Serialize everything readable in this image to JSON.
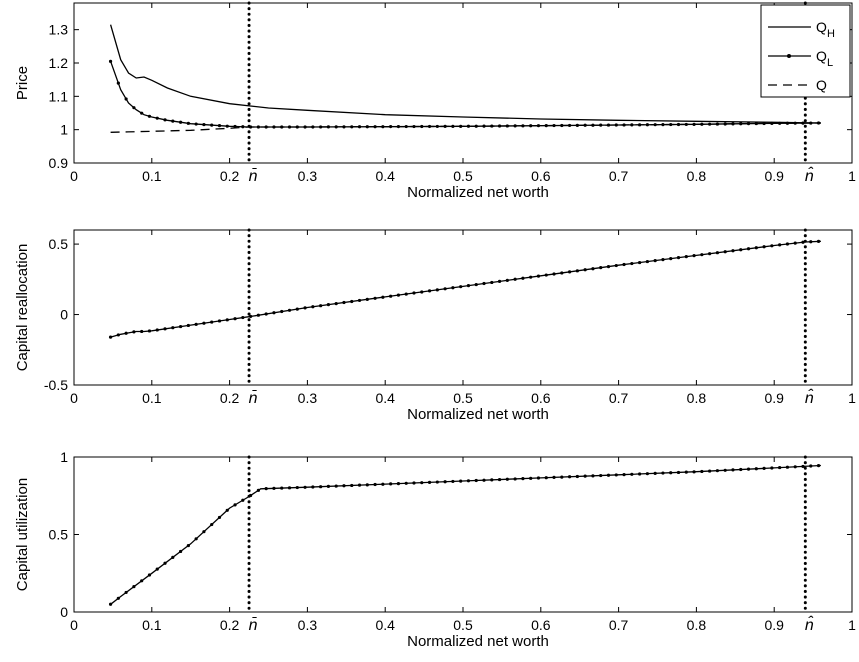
{
  "chart_data": [
    {
      "type": "line",
      "xlabel": "Normalized net worth",
      "ylabel": "Price",
      "xlim": [
        0,
        1
      ],
      "ylim": [
        0.9,
        1.38
      ],
      "x_ticks": [
        "0",
        "0.1",
        "0.2",
        "0.3",
        "0.4",
        "0.5",
        "0.6",
        "0.7",
        "0.8",
        "0.9",
        "1"
      ],
      "y_ticks": [
        "0.9",
        "1",
        "1.1",
        "1.2",
        "1.3"
      ],
      "vlines": [
        {
          "x": 0.225,
          "label": "n̄"
        },
        {
          "x": 0.94,
          "label": "n̂"
        }
      ],
      "legend": {
        "position": "top-right"
      },
      "series": [
        {
          "name": "Q",
          "name_sub": "H",
          "style": "solid",
          "x": [
            0.047,
            0.06,
            0.07,
            0.08,
            0.09,
            0.1,
            0.12,
            0.15,
            0.2,
            0.25,
            0.3,
            0.4,
            0.5,
            0.6,
            0.7,
            0.8,
            0.9,
            0.96
          ],
          "y": [
            1.315,
            1.21,
            1.17,
            1.155,
            1.158,
            1.148,
            1.125,
            1.1,
            1.078,
            1.065,
            1.058,
            1.045,
            1.038,
            1.032,
            1.028,
            1.025,
            1.022,
            1.02
          ]
        },
        {
          "name": "Q",
          "name_sub": "L",
          "style": "dotted-markers",
          "x": [
            0.047,
            0.06,
            0.07,
            0.08,
            0.09,
            0.1,
            0.12,
            0.15,
            0.2,
            0.225,
            0.3,
            0.4,
            0.5,
            0.6,
            0.7,
            0.8,
            0.9,
            0.96
          ],
          "y": [
            1.205,
            1.12,
            1.08,
            1.06,
            1.045,
            1.038,
            1.028,
            1.018,
            1.01,
            1.008,
            1.008,
            1.009,
            1.01,
            1.012,
            1.014,
            1.016,
            1.019,
            1.02
          ]
        },
        {
          "name": "Q",
          "style": "dashed",
          "x": [
            0.047,
            0.1,
            0.15,
            0.2,
            0.225,
            0.3,
            0.4,
            0.5,
            0.6,
            0.7,
            0.8,
            0.9,
            0.96
          ],
          "y": [
            0.992,
            0.995,
            0.998,
            1.004,
            1.008,
            1.008,
            1.009,
            1.01,
            1.012,
            1.014,
            1.016,
            1.019,
            1.02
          ]
        }
      ]
    },
    {
      "type": "line",
      "xlabel": "Normalized net worth",
      "ylabel": "Capital reallocation",
      "xlim": [
        0,
        1
      ],
      "ylim": [
        -0.5,
        0.6
      ],
      "x_ticks": [
        "0",
        "0.1",
        "0.2",
        "0.3",
        "0.4",
        "0.5",
        "0.6",
        "0.7",
        "0.8",
        "0.9",
        "1"
      ],
      "y_ticks": [
        "-0.5",
        "0",
        "0.5"
      ],
      "vlines": [
        {
          "x": 0.225,
          "label": "n̄"
        },
        {
          "x": 0.94,
          "label": "n̂"
        }
      ],
      "series": [
        {
          "style": "dotted-markers",
          "x": [
            0.047,
            0.06,
            0.07,
            0.08,
            0.09,
            0.1,
            0.15,
            0.2,
            0.225,
            0.3,
            0.4,
            0.5,
            0.6,
            0.7,
            0.8,
            0.9,
            0.94,
            0.96
          ],
          "y": [
            -0.16,
            -0.14,
            -0.13,
            -0.12,
            -0.12,
            -0.115,
            -0.075,
            -0.035,
            -0.015,
            0.05,
            0.125,
            0.2,
            0.275,
            0.35,
            0.42,
            0.49,
            0.515,
            0.52
          ]
        }
      ]
    },
    {
      "type": "line",
      "xlabel": "Normalized net worth",
      "ylabel": "Capital utilization",
      "xlim": [
        0,
        1
      ],
      "ylim": [
        0,
        1
      ],
      "x_ticks": [
        "0",
        "0.1",
        "0.2",
        "0.3",
        "0.4",
        "0.5",
        "0.6",
        "0.7",
        "0.8",
        "0.9",
        "1"
      ],
      "y_ticks": [
        "0",
        "0.5",
        "1"
      ],
      "vlines": [
        {
          "x": 0.225,
          "label": "n̄"
        },
        {
          "x": 0.94,
          "label": "n̂"
        }
      ],
      "series": [
        {
          "style": "dotted-markers",
          "x": [
            0.047,
            0.06,
            0.1,
            0.15,
            0.2,
            0.225,
            0.24,
            0.3,
            0.4,
            0.5,
            0.6,
            0.7,
            0.8,
            0.9,
            0.96
          ],
          "y": [
            0.05,
            0.1,
            0.25,
            0.44,
            0.67,
            0.745,
            0.795,
            0.805,
            0.825,
            0.845,
            0.865,
            0.885,
            0.905,
            0.93,
            0.945
          ]
        }
      ]
    }
  ]
}
